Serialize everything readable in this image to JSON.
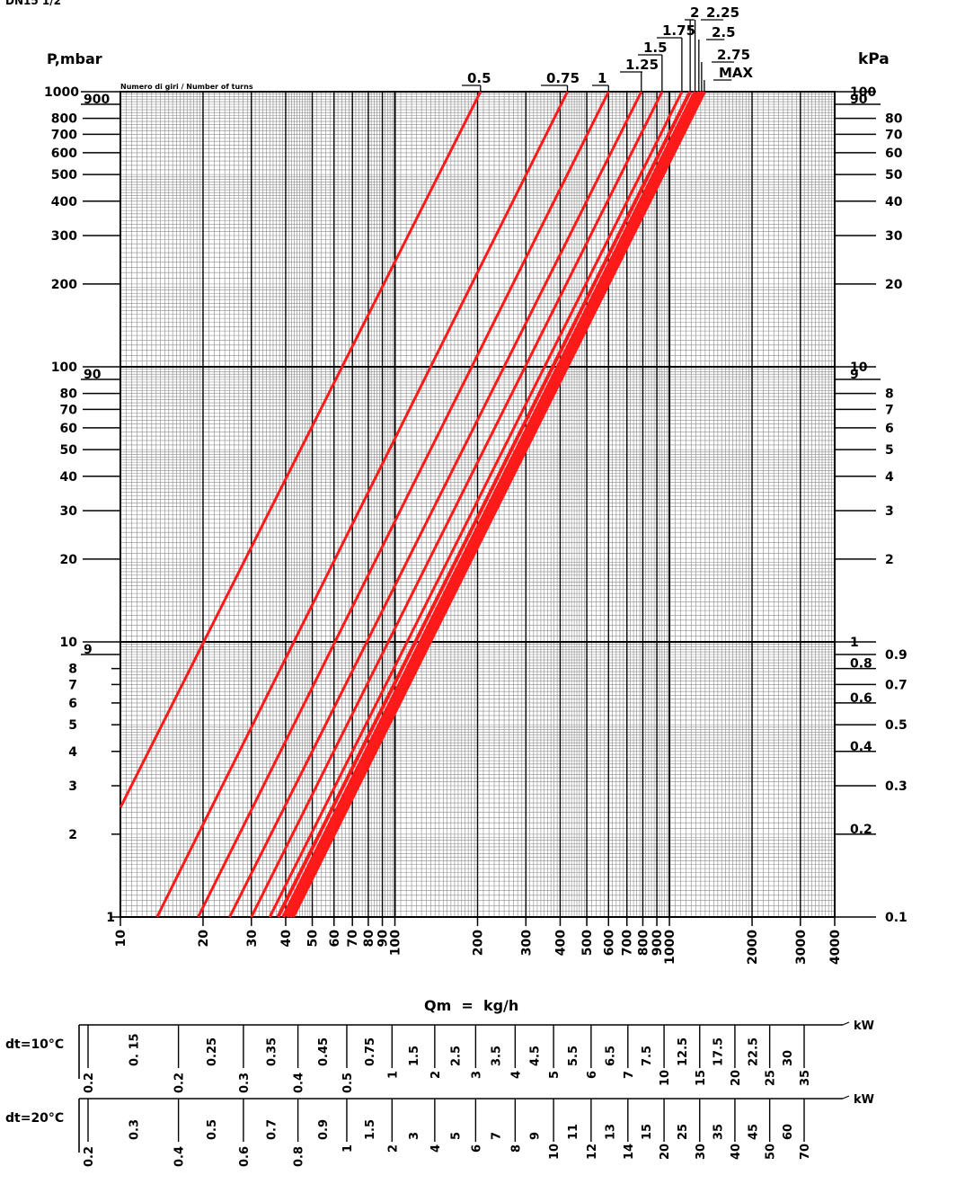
{
  "header": {
    "model": "DN15 1/2"
  },
  "chart_data": {
    "type": "line",
    "title": "",
    "subtitle": "Numero di giri / Number of turns",
    "left_axis_label": "P,mbar",
    "right_axis_label": "kPa",
    "xlabel": "Qm  =  kg/h",
    "x_scale": "log",
    "y_scale": "log",
    "xlim": [
      10,
      4000
    ],
    "ylim": [
      1,
      1000
    ],
    "grid": true,
    "x_tick_labels": [
      {
        "v": 10,
        "t": "10"
      },
      {
        "v": 20,
        "t": "20"
      },
      {
        "v": 30,
        "t": "30"
      },
      {
        "v": 40,
        "t": "40"
      },
      {
        "v": 50,
        "t": "50"
      },
      {
        "v": 60,
        "t": "60"
      },
      {
        "v": 70,
        "t": "70"
      },
      {
        "v": 80,
        "t": "80"
      },
      {
        "v": 90,
        "t": "90"
      },
      {
        "v": 100,
        "t": "100"
      },
      {
        "v": 200,
        "t": "200"
      },
      {
        "v": 300,
        "t": "300"
      },
      {
        "v": 400,
        "t": "400"
      },
      {
        "v": 500,
        "t": "500"
      },
      {
        "v": 600,
        "t": "600"
      },
      {
        "v": 700,
        "t": "700"
      },
      {
        "v": 800,
        "t": "800"
      },
      {
        "v": 900,
        "t": "900"
      },
      {
        "v": 1000,
        "t": "1000"
      },
      {
        "v": 2000,
        "t": "2000"
      },
      {
        "v": 3000,
        "t": "3000"
      },
      {
        "v": 4000,
        "t": "4000"
      }
    ],
    "y_left_labels": [
      {
        "v": 1,
        "t": "1"
      },
      {
        "v": 2,
        "t": "2"
      },
      {
        "v": 3,
        "t": "3"
      },
      {
        "v": 4,
        "t": "4"
      },
      {
        "v": 5,
        "t": "5"
      },
      {
        "v": 6,
        "t": "6"
      },
      {
        "v": 7,
        "t": "7"
      },
      {
        "v": 8,
        "t": "8"
      },
      {
        "v": 9,
        "t": "9"
      },
      {
        "v": 10,
        "t": "10"
      },
      {
        "v": 20,
        "t": "20"
      },
      {
        "v": 30,
        "t": "30"
      },
      {
        "v": 40,
        "t": "40"
      },
      {
        "v": 50,
        "t": "50"
      },
      {
        "v": 60,
        "t": "60"
      },
      {
        "v": 70,
        "t": "70"
      },
      {
        "v": 80,
        "t": "80"
      },
      {
        "v": 90,
        "t": "90"
      },
      {
        "v": 100,
        "t": "100"
      },
      {
        "v": 200,
        "t": "200"
      },
      {
        "v": 300,
        "t": "300"
      },
      {
        "v": 400,
        "t": "400"
      },
      {
        "v": 500,
        "t": "500"
      },
      {
        "v": 600,
        "t": "600"
      },
      {
        "v": 700,
        "t": "700"
      },
      {
        "v": 800,
        "t": "800"
      },
      {
        "v": 900,
        "t": "900"
      },
      {
        "v": 1000,
        "t": "1000"
      }
    ],
    "y_right_labels": [
      {
        "v": 1,
        "t": "0.1"
      },
      {
        "v": 2,
        "t": "0.2"
      },
      {
        "v": 3,
        "t": "0.3"
      },
      {
        "v": 4,
        "t": "0.4"
      },
      {
        "v": 5,
        "t": "0.5"
      },
      {
        "v": 6,
        "t": "0.6"
      },
      {
        "v": 7,
        "t": "0.7"
      },
      {
        "v": 8,
        "t": "0.8"
      },
      {
        "v": 9,
        "t": "0.9"
      },
      {
        "v": 10,
        "t": "1"
      },
      {
        "v": 20,
        "t": "2"
      },
      {
        "v": 30,
        "t": "3"
      },
      {
        "v": 40,
        "t": "4"
      },
      {
        "v": 50,
        "t": "5"
      },
      {
        "v": 60,
        "t": "6"
      },
      {
        "v": 70,
        "t": "7"
      },
      {
        "v": 80,
        "t": "8"
      },
      {
        "v": 90,
        "t": "9"
      },
      {
        "v": 100,
        "t": "10"
      },
      {
        "v": 200,
        "t": "20"
      },
      {
        "v": 300,
        "t": "30"
      },
      {
        "v": 400,
        "t": "40"
      },
      {
        "v": 500,
        "t": "50"
      },
      {
        "v": 600,
        "t": "60"
      },
      {
        "v": 700,
        "t": "70"
      },
      {
        "v": 800,
        "t": "80"
      },
      {
        "v": 900,
        "t": "90"
      },
      {
        "v": 1000,
        "t": "100"
      }
    ],
    "line_color": "#ff1a1a",
    "series": [
      {
        "name": "0.5",
        "points": [
          [
            10,
            2.5
          ],
          [
            205,
            1000
          ]
        ]
      },
      {
        "name": "0.75",
        "points": [
          [
            13.6,
            1
          ],
          [
            425,
            1000
          ]
        ]
      },
      {
        "name": "1",
        "points": [
          [
            19.2,
            1
          ],
          [
            600,
            1000
          ]
        ]
      },
      {
        "name": "1.25",
        "points": [
          [
            25,
            1
          ],
          [
            790,
            1000
          ]
        ]
      },
      {
        "name": "1.5",
        "points": [
          [
            30,
            1
          ],
          [
            940,
            1000
          ]
        ]
      },
      {
        "name": "1.75",
        "points": [
          [
            35,
            1
          ],
          [
            1110,
            1000
          ]
        ]
      },
      {
        "name": "2",
        "points": [
          [
            37.5,
            1
          ],
          [
            1190,
            1000
          ]
        ]
      },
      {
        "name": "2.25",
        "points": [
          [
            39.2,
            1
          ],
          [
            1240,
            1000
          ]
        ]
      },
      {
        "name": "2.5",
        "points": [
          [
            40.5,
            1
          ],
          [
            1280,
            1000
          ]
        ]
      },
      {
        "name": "2.75",
        "points": [
          [
            41.5,
            1
          ],
          [
            1310,
            1000
          ]
        ]
      },
      {
        "name": "MAX",
        "points": [
          [
            42.5,
            1
          ],
          [
            1340,
            1000
          ]
        ]
      }
    ],
    "power_scales": [
      {
        "label": "dt=10°C",
        "unit": "kW",
        "upper_labels": [
          "0. 15",
          "0.25",
          "0.35",
          "0.45",
          "0.75",
          "1.5",
          "2.5",
          "3.5",
          "4.5",
          "5.5",
          "6.5",
          "7.5",
          "12.5",
          "17.5",
          "22.5",
          "30"
        ],
        "lower_labels": [
          "0.2",
          "0.2",
          "0.3",
          "0.4",
          "0.5",
          "1",
          "2",
          "3",
          "4",
          "5",
          "6",
          "7",
          "10",
          "15",
          "20",
          "25",
          "35"
        ]
      },
      {
        "label": "dt=20°C",
        "unit": "kW",
        "upper_labels": [
          "0.3",
          "0.5",
          "0.7",
          "0.9",
          "1.5",
          "3",
          "5",
          "7",
          "9",
          "11",
          "13",
          "15",
          "25",
          "35",
          "45",
          "60"
        ],
        "lower_labels": [
          "0.2",
          "0.4",
          "0.6",
          "0.8",
          "1",
          "2",
          "4",
          "6",
          "8",
          "10",
          "12",
          "14",
          "20",
          "30",
          "40",
          "50",
          "70"
        ]
      }
    ]
  }
}
